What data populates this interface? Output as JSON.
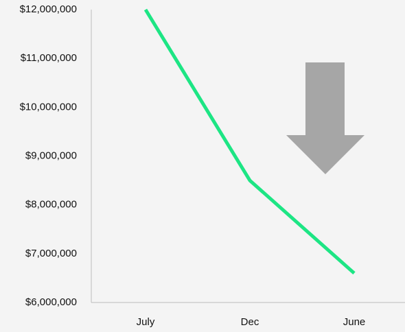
{
  "chart_data": {
    "type": "line",
    "categories": [
      "July",
      "Dec",
      "June"
    ],
    "series": [
      {
        "color": "#1de584",
        "values": [
          12000000,
          8500000,
          6600000
        ]
      }
    ],
    "ylim": [
      6000000,
      12000000
    ],
    "yticks": [
      {
        "value": 6000000,
        "label": "$6,000,000"
      },
      {
        "value": 7000000,
        "label": "$7,000,000"
      },
      {
        "value": 8000000,
        "label": "$8,000,000"
      },
      {
        "value": 9000000,
        "label": "$9,000,000"
      },
      {
        "value": 10000000,
        "label": "$10,000,000"
      },
      {
        "value": 11000000,
        "label": "$11,000,000"
      },
      {
        "value": 12000000,
        "label": "$12,000,000"
      }
    ],
    "grid": false
  }
}
